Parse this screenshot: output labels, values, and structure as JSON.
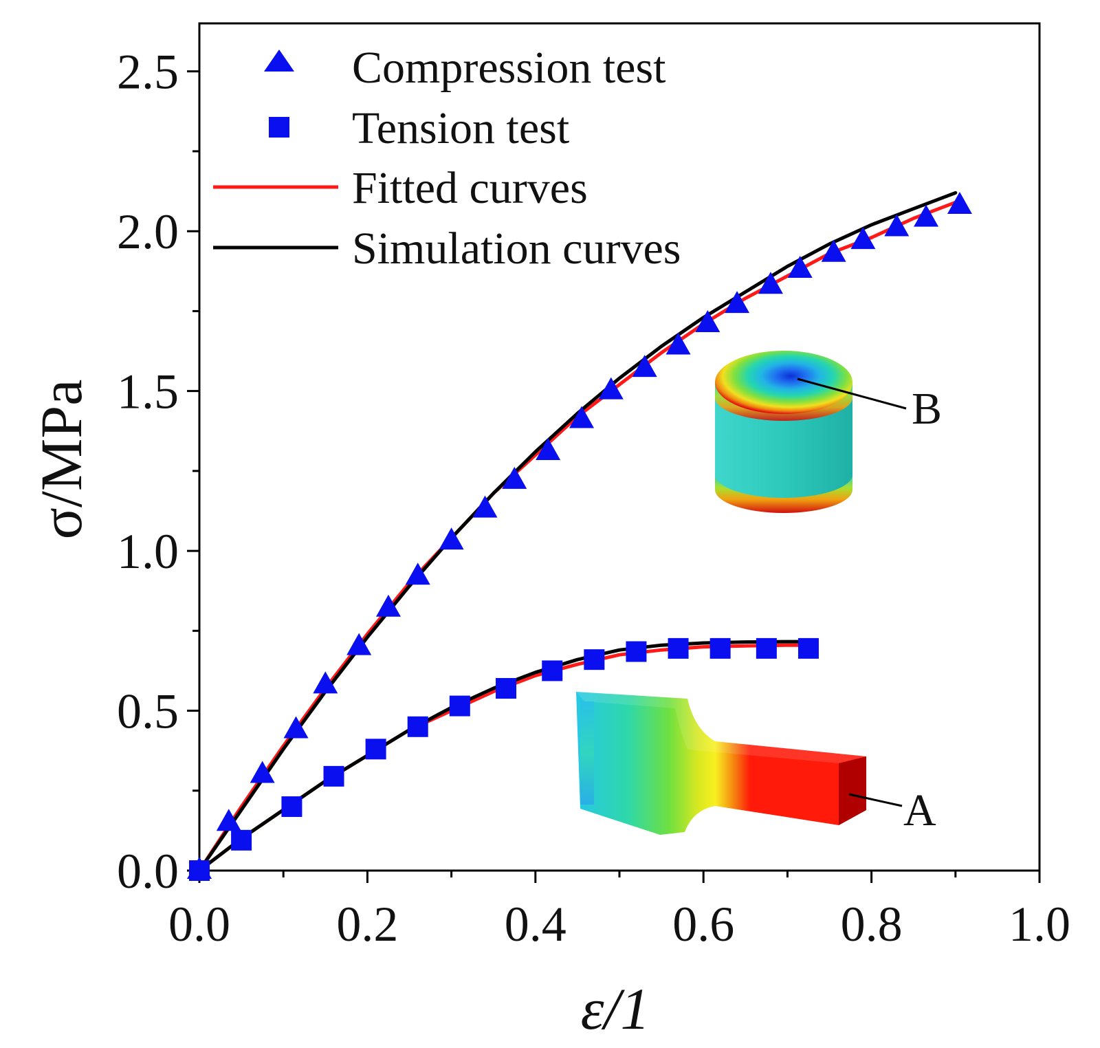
{
  "chart_data": {
    "type": "scatter",
    "title": "",
    "xlabel": "ε/1",
    "ylabel": "σ/MPa",
    "xlim": [
      0.0,
      1.0
    ],
    "ylim": [
      0.0,
      2.65
    ],
    "x_ticks": [
      "0.0",
      "0.2",
      "0.4",
      "0.6",
      "0.8",
      "1.0"
    ],
    "y_ticks": [
      "0.0",
      "0.5",
      "1.0",
      "1.5",
      "2.0",
      "2.5"
    ],
    "grid": false,
    "legend_position": "top-left",
    "legend": {
      "compression": "Compression test",
      "tension": "Tension test",
      "fitted": "Fitted curves",
      "simulation": "Simulation curves"
    },
    "series": [
      {
        "name": "Compression test",
        "marker": "triangle",
        "color": "#0a0ff0",
        "x": [
          0.0,
          0.035,
          0.075,
          0.115,
          0.15,
          0.19,
          0.225,
          0.26,
          0.3,
          0.34,
          0.375,
          0.415,
          0.455,
          0.49,
          0.53,
          0.57,
          0.605,
          0.64,
          0.68,
          0.715,
          0.755,
          0.79,
          0.83,
          0.865,
          0.905
        ],
        "y": [
          0.0,
          0.15,
          0.3,
          0.44,
          0.58,
          0.7,
          0.82,
          0.92,
          1.03,
          1.13,
          1.22,
          1.31,
          1.41,
          1.5,
          1.57,
          1.64,
          1.71,
          1.77,
          1.83,
          1.88,
          1.93,
          1.97,
          2.01,
          2.04,
          2.08
        ]
      },
      {
        "name": "Tension test",
        "marker": "square",
        "color": "#0a0ff0",
        "x": [
          0.0,
          0.05,
          0.11,
          0.16,
          0.21,
          0.26,
          0.31,
          0.365,
          0.42,
          0.47,
          0.52,
          0.57,
          0.62,
          0.675,
          0.725
        ],
        "y": [
          0.0,
          0.095,
          0.2,
          0.295,
          0.38,
          0.45,
          0.515,
          0.57,
          0.625,
          0.66,
          0.685,
          0.695,
          0.695,
          0.695,
          0.695
        ]
      },
      {
        "name": "Fitted curves",
        "color": "#ff1a1a",
        "curves": [
          {
            "x": [
              0.0,
              0.05,
              0.1,
              0.15,
              0.2,
              0.25,
              0.3,
              0.35,
              0.4,
              0.45,
              0.5,
              0.55,
              0.6,
              0.65,
              0.7,
              0.75,
              0.8,
              0.85,
              0.9
            ],
            "y": [
              0.0,
              0.2,
              0.39,
              0.57,
              0.74,
              0.9,
              1.04,
              1.18,
              1.3,
              1.42,
              1.52,
              1.62,
              1.71,
              1.79,
              1.86,
              1.93,
              1.98,
              2.04,
              2.09
            ]
          },
          {
            "x": [
              0.0,
              0.05,
              0.1,
              0.15,
              0.2,
              0.25,
              0.3,
              0.35,
              0.4,
              0.45,
              0.5,
              0.55,
              0.6,
              0.65,
              0.7,
              0.73
            ],
            "y": [
              0.0,
              0.1,
              0.19,
              0.28,
              0.36,
              0.44,
              0.5,
              0.56,
              0.61,
              0.645,
              0.675,
              0.69,
              0.7,
              0.703,
              0.705,
              0.705
            ]
          }
        ]
      },
      {
        "name": "Simulation curves",
        "color": "#000000",
        "curves": [
          {
            "x": [
              0.0,
              0.05,
              0.1,
              0.15,
              0.2,
              0.25,
              0.3,
              0.35,
              0.4,
              0.45,
              0.5,
              0.55,
              0.6,
              0.65,
              0.7,
              0.75,
              0.8,
              0.85,
              0.9
            ],
            "y": [
              0.0,
              0.19,
              0.38,
              0.56,
              0.73,
              0.89,
              1.04,
              1.18,
              1.31,
              1.43,
              1.54,
              1.64,
              1.73,
              1.81,
              1.89,
              1.96,
              2.02,
              2.07,
              2.12
            ]
          },
          {
            "x": [
              0.0,
              0.05,
              0.1,
              0.15,
              0.2,
              0.25,
              0.3,
              0.35,
              0.4,
              0.45,
              0.5,
              0.55,
              0.6,
              0.65,
              0.7,
              0.73
            ],
            "y": [
              0.0,
              0.1,
              0.19,
              0.28,
              0.36,
              0.44,
              0.51,
              0.57,
              0.62,
              0.66,
              0.69,
              0.705,
              0.712,
              0.715,
              0.716,
              0.716
            ]
          }
        ]
      }
    ],
    "annotations": [
      {
        "label": "A",
        "text": "A"
      },
      {
        "label": "B",
        "text": "B"
      }
    ]
  }
}
